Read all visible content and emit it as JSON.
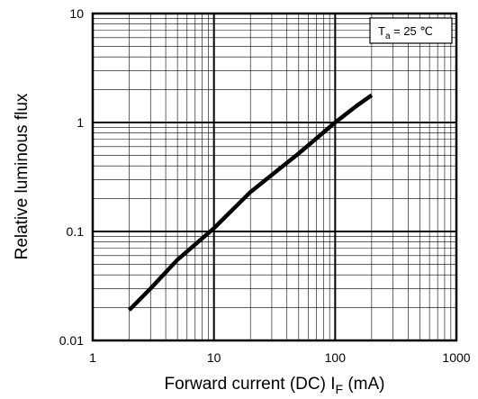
{
  "chart_data": {
    "type": "line",
    "xlabel": {
      "prefix": "Forward current (DC)  I",
      "subscript": "F",
      "suffix": "  (mA)"
    },
    "ylabel": "Relative luminous flux",
    "x_scale": "log",
    "y_scale": "log",
    "xlim": [
      1,
      1000
    ],
    "ylim": [
      0.01,
      10
    ],
    "x_ticks": [
      "1",
      "10",
      "100",
      "1000"
    ],
    "y_ticks": [
      "10",
      "1",
      "0.1",
      "0.01"
    ],
    "grid": true,
    "annotation": {
      "main": "T",
      "subscript": "a",
      "rest": " = 25 ℃",
      "position": "top-right"
    },
    "series": [
      {
        "x": [
          2,
          3,
          5,
          10,
          20,
          30,
          50,
          100,
          150,
          200
        ],
        "y": [
          0.019,
          0.03,
          0.055,
          0.107,
          0.23,
          0.33,
          0.52,
          1.0,
          1.42,
          1.78
        ],
        "color": "#000000"
      }
    ]
  }
}
